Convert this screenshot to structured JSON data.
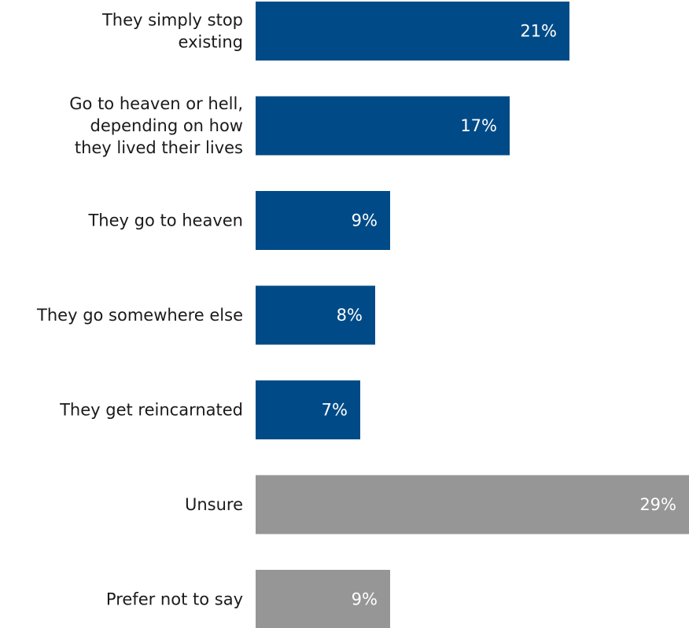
{
  "chart_data": {
    "type": "bar",
    "orientation": "horizontal",
    "categories": [
      [
        "They simply stop",
        "existing"
      ],
      [
        "Go to heaven or hell,",
        "depending on how",
        "they lived their lives"
      ],
      [
        "They go to heaven"
      ],
      [
        "They go somewhere else"
      ],
      [
        "They get reincarnated"
      ],
      [
        "Unsure"
      ],
      [
        "Prefer not to say"
      ]
    ],
    "values": [
      21,
      17,
      9,
      8,
      7,
      29,
      9
    ],
    "value_labels": [
      "21%",
      "17%",
      "9%",
      "8%",
      "7%",
      "29%",
      "9%"
    ],
    "colors": [
      "#004b87",
      "#004b87",
      "#004b87",
      "#004b87",
      "#004b87",
      "#969696",
      "#969696"
    ],
    "xlim": [
      0,
      29
    ],
    "grid": false,
    "legend": "none"
  }
}
